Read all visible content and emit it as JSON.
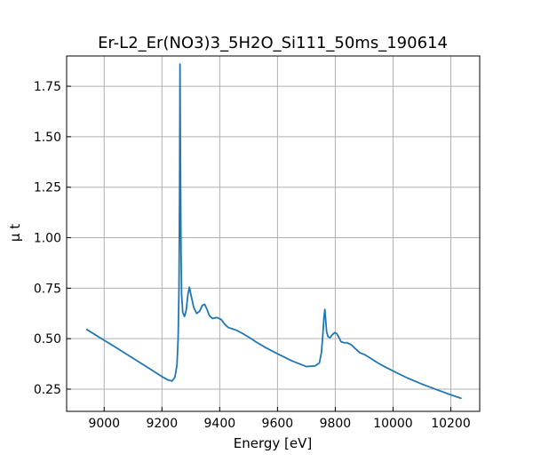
{
  "chart_data": {
    "type": "line",
    "title": "Er-L2_Er(NO3)3_5H2O_Si111_50ms_190614",
    "xlabel": "Energy [eV]",
    "ylabel": "μ t",
    "xlim": [
      8870,
      10300
    ],
    "ylim": [
      0.14,
      1.9
    ],
    "xticks": [
      9000,
      9200,
      9400,
      9600,
      9800,
      10000,
      10200
    ],
    "yticks": [
      0.25,
      0.5,
      0.75,
      1.0,
      1.25,
      1.5,
      1.75
    ],
    "xtick_labels": [
      "9000",
      "9200",
      "9400",
      "9600",
      "9800",
      "10000",
      "10200"
    ],
    "ytick_labels": [
      "0.25",
      "0.50",
      "0.75",
      "1.00",
      "1.25",
      "1.50",
      "1.75"
    ],
    "grid": true,
    "line_color": "#1f77b4",
    "series": [
      {
        "x": [
          8940,
          9000,
          9050,
          9100,
          9150,
          9200,
          9220,
          9235,
          9245,
          9252,
          9256,
          9259,
          9261,
          9262.5,
          9264,
          9266,
          9268,
          9272,
          9278,
          9284,
          9290,
          9295,
          9300,
          9310,
          9320,
          9330,
          9340,
          9348,
          9356,
          9365,
          9375,
          9390,
          9405,
          9418,
          9430,
          9445,
          9460,
          9480,
          9500,
          9530,
          9560,
          9600,
          9650,
          9700,
          9730,
          9745,
          9752,
          9757,
          9761,
          9764,
          9767,
          9770,
          9775,
          9782,
          9790,
          9798,
          9805,
          9812,
          9820,
          9830,
          9840,
          9855,
          9870,
          9885,
          9900,
          9920,
          9945,
          9970,
          10000,
          10050,
          10100,
          10150,
          10200,
          10235
        ],
        "y": [
          0.545,
          0.492,
          0.448,
          0.403,
          0.358,
          0.312,
          0.296,
          0.29,
          0.31,
          0.37,
          0.5,
          0.75,
          1.2,
          1.86,
          1.4,
          0.95,
          0.72,
          0.63,
          0.61,
          0.64,
          0.72,
          0.755,
          0.72,
          0.655,
          0.625,
          0.635,
          0.665,
          0.67,
          0.645,
          0.612,
          0.6,
          0.605,
          0.595,
          0.57,
          0.555,
          0.548,
          0.54,
          0.525,
          0.508,
          0.48,
          0.455,
          0.425,
          0.39,
          0.362,
          0.365,
          0.38,
          0.43,
          0.52,
          0.61,
          0.645,
          0.59,
          0.535,
          0.51,
          0.505,
          0.52,
          0.53,
          0.525,
          0.508,
          0.485,
          0.48,
          0.48,
          0.47,
          0.45,
          0.43,
          0.422,
          0.405,
          0.382,
          0.362,
          0.34,
          0.305,
          0.275,
          0.248,
          0.222,
          0.205
        ]
      }
    ]
  }
}
